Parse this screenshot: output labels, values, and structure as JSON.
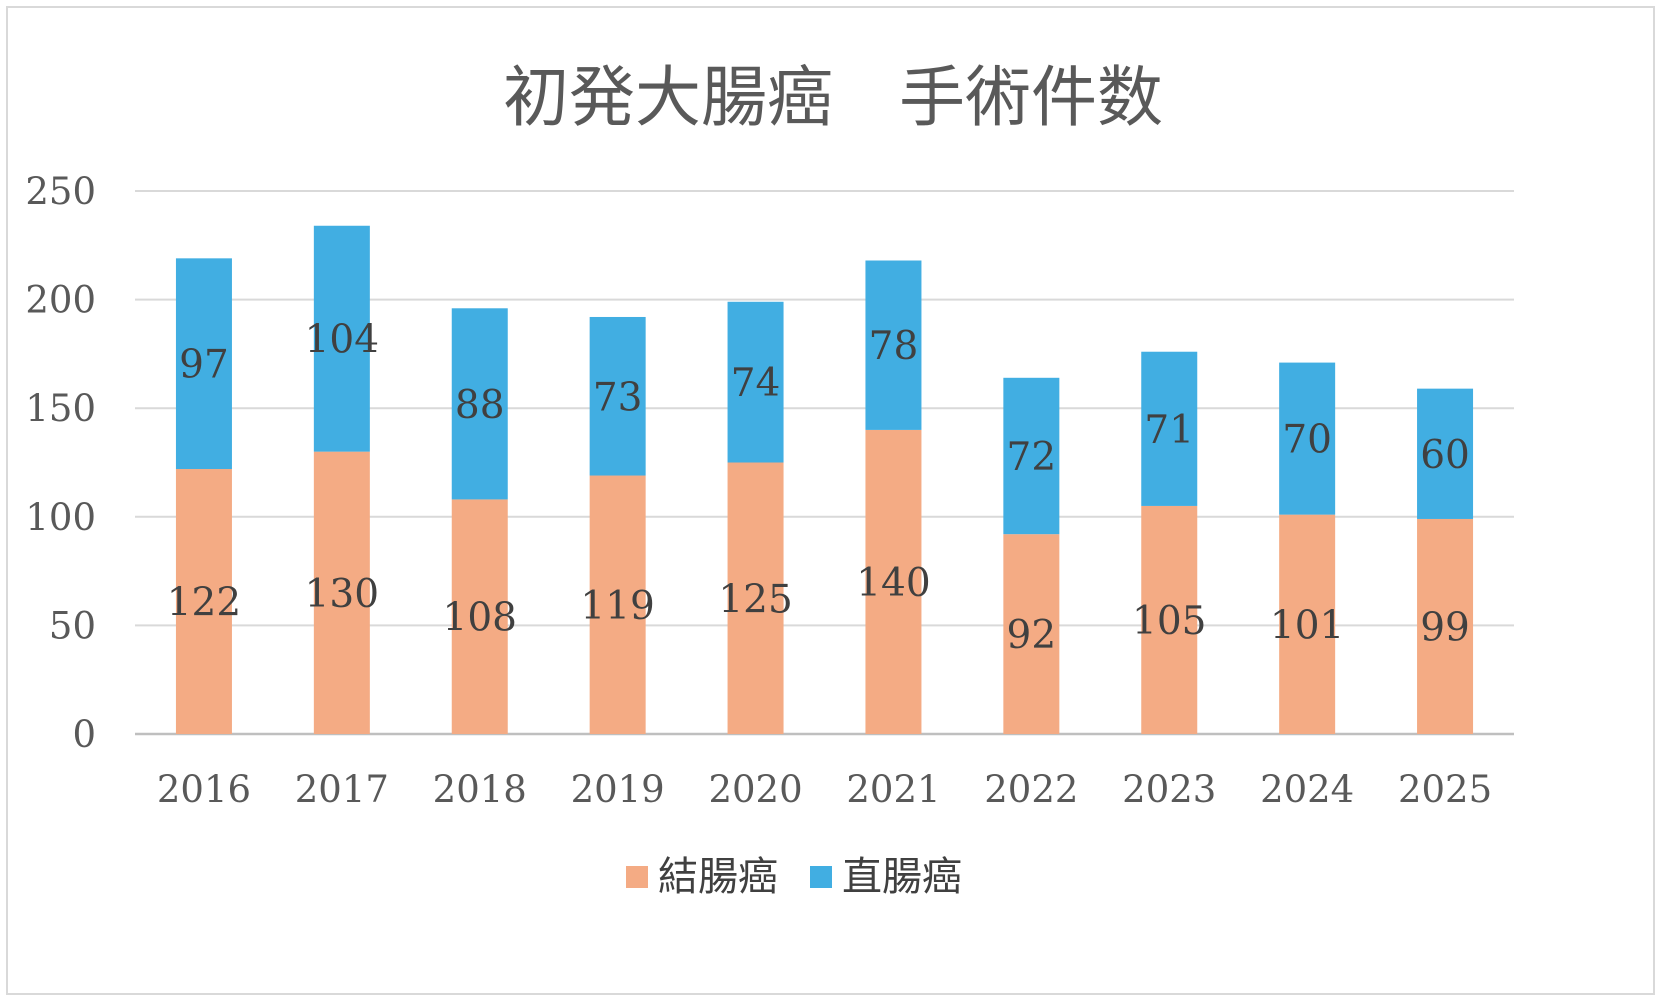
{
  "chart_data": {
    "type": "bar",
    "stacked": true,
    "title": "初発大腸癌　手術件数",
    "xlabel": "",
    "ylabel": "",
    "categories": [
      "2016",
      "2017",
      "2018",
      "2019",
      "2020",
      "2021",
      "2022",
      "2023",
      "2024",
      "2025"
    ],
    "series": [
      {
        "name": "結腸癌",
        "color": "#f4ab84",
        "values": [
          122,
          130,
          108,
          119,
          125,
          140,
          92,
          105,
          101,
          99
        ]
      },
      {
        "name": "直腸癌",
        "color": "#41aee2",
        "values": [
          97,
          104,
          88,
          73,
          74,
          78,
          72,
          71,
          70,
          60
        ]
      }
    ],
    "ylim": [
      0,
      250
    ],
    "yticks": [
      0,
      50,
      100,
      150,
      200,
      250
    ],
    "grid": true,
    "legend": "bottom",
    "data_labels": true
  }
}
